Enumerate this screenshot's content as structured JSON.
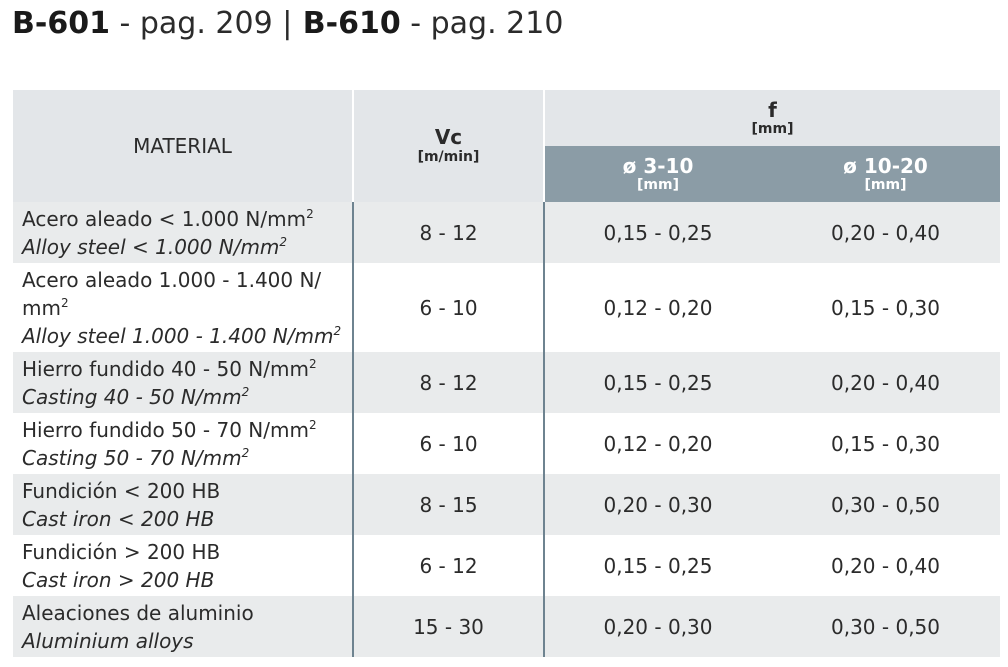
{
  "heading": {
    "part1_code": "B-601",
    "part1_page": " - pag. 209 ",
    "separator": "|",
    "part2_code": " B-610",
    "part2_page": " - pag. 210"
  },
  "table": {
    "header": {
      "material": "MATERIAL",
      "vc": "Vc",
      "vc_unit": "[m/min]",
      "f": "f",
      "f_unit": "[mm]",
      "sub1": "ø 3-10",
      "sub1_unit": "[mm]",
      "sub2": "ø 10-20",
      "sub2_unit": "[mm]"
    },
    "rows": [
      {
        "es": "Acero aleado < 1.000 N/mm",
        "es_sup": "2",
        "en": "Alloy steel < 1.000 N/mm",
        "en_sup": "2",
        "vc": "8 - 12",
        "f1": "0,15 - 0,25",
        "f2": "0,20 - 0,40"
      },
      {
        "es1": "Acero aleado 1.000 - 1.400 N/",
        "es2": "mm",
        "es_sup": "2",
        "en": "Alloy steel 1.000 - 1.400 N/mm",
        "en_sup": "2",
        "vc": "6 - 10",
        "f1": "0,12 - 0,20",
        "f2": "0,15 - 0,30"
      },
      {
        "es": "Hierro fundido 40 - 50 N/mm",
        "es_sup": "2",
        "en": "Casting 40 - 50 N/mm",
        "en_sup": "2",
        "vc": "8 - 12",
        "f1": "0,15 - 0,25",
        "f2": "0,20 - 0,40"
      },
      {
        "es": "Hierro fundido 50 - 70 N/mm",
        "es_sup": "2",
        "en": "Casting 50 - 70 N/mm",
        "en_sup": "2",
        "vc": "6 - 10",
        "f1": "0,12 - 0,20",
        "f2": "0,15 - 0,30"
      },
      {
        "es": "Fundición < 200 HB",
        "en": "Cast iron < 200 HB",
        "vc": "8 - 15",
        "f1": "0,20 - 0,30",
        "f2": "0,30 - 0,50"
      },
      {
        "es": "Fundición > 200 HB",
        "en": "Cast iron > 200 HB",
        "vc": "6 - 12",
        "f1": "0,15 - 0,25",
        "f2": "0,20 - 0,40"
      },
      {
        "es": "Aleaciones de aluminio",
        "en": "Aluminium alloys",
        "vc": "15 - 30",
        "f1": "0,20 - 0,30",
        "f2": "0,30 - 0,50"
      }
    ]
  }
}
